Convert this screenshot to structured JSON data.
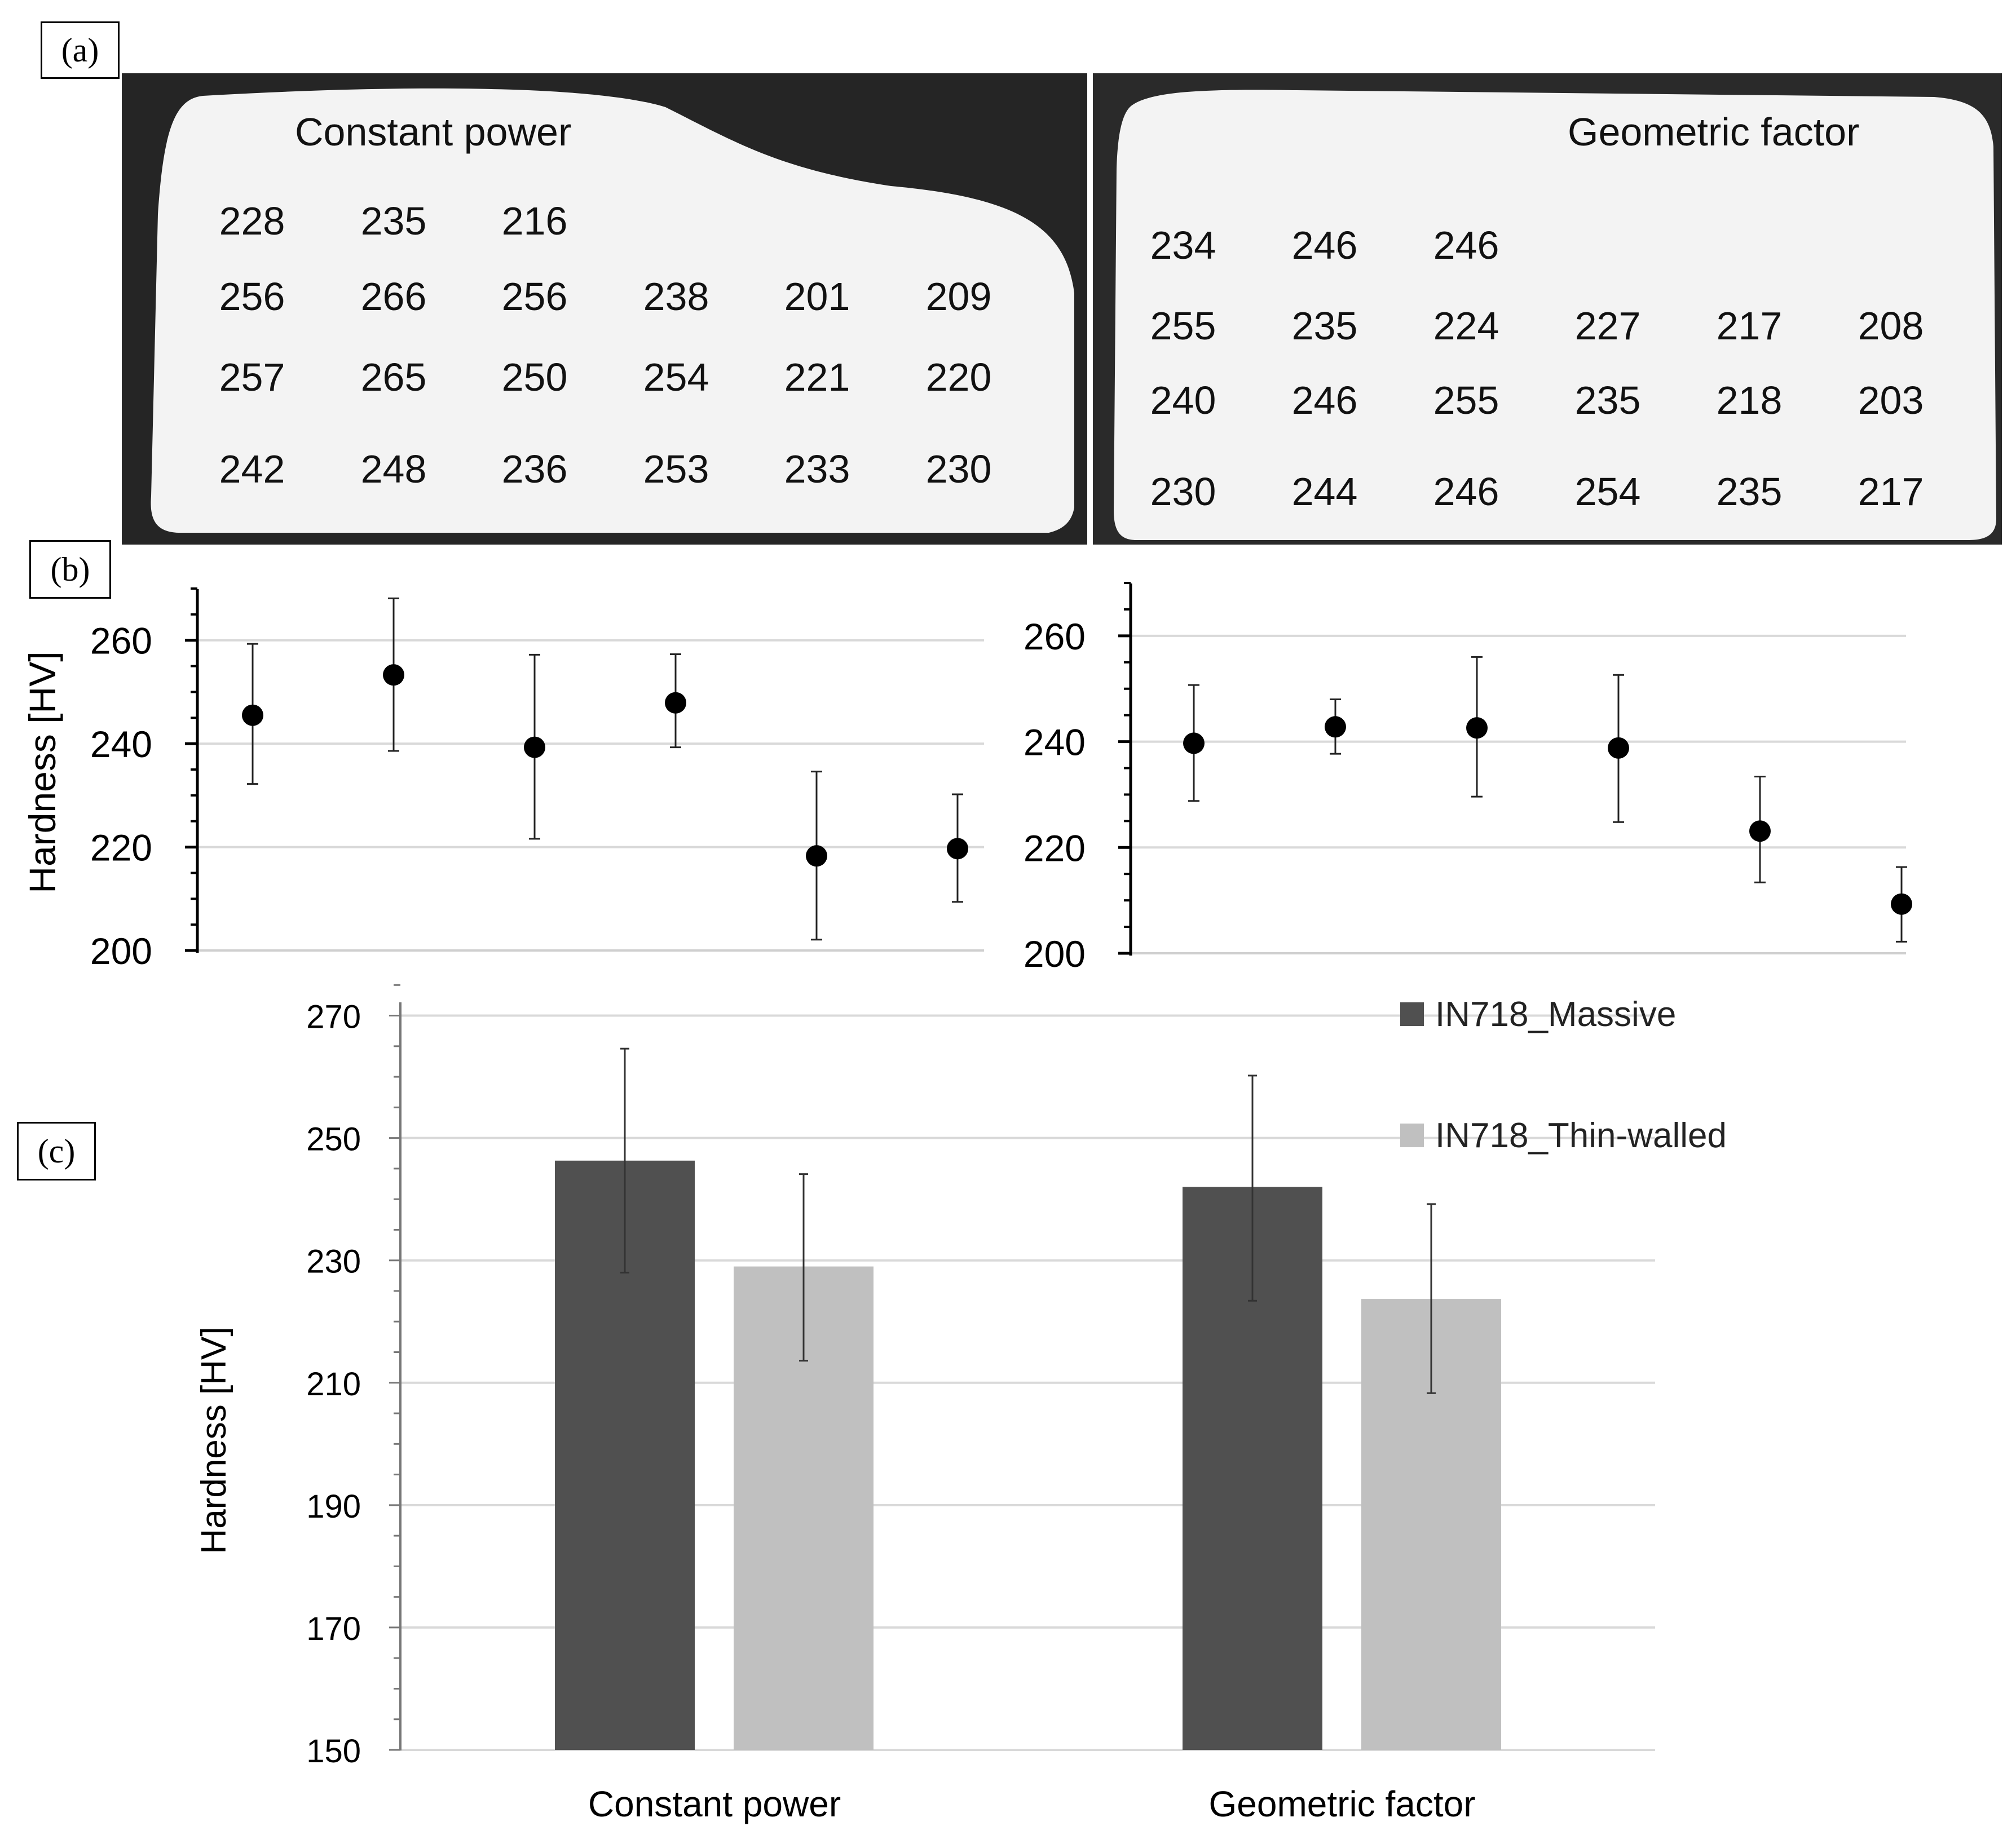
{
  "panel_labels": {
    "a": "(a)",
    "b": "(b)",
    "c": "(c)"
  },
  "panel_a": {
    "left": {
      "label": "Constant power",
      "grid": [
        [
          "228",
          "235",
          "216"
        ],
        [
          "256",
          "266",
          "256",
          "238",
          "201",
          "209"
        ],
        [
          "257",
          "265",
          "250",
          "254",
          "221",
          "220"
        ],
        [
          "242",
          "248",
          "236",
          "253",
          "233",
          "230"
        ]
      ]
    },
    "right": {
      "label": "Geometric factor",
      "grid": [
        [
          "234",
          "246",
          "246"
        ],
        [
          "255",
          "235",
          "224",
          "227",
          "217",
          "208"
        ],
        [
          "240",
          "246",
          "255",
          "235",
          "218",
          "203"
        ],
        [
          "230",
          "244",
          "246",
          "254",
          "235",
          "217"
        ]
      ]
    },
    "colors": {
      "background": "#252525",
      "specimen": "#f3f3f3"
    }
  },
  "chart_data": [
    {
      "type": "scatter",
      "panel": "b-left",
      "title": "",
      "ylabel": "Hardness [HV]",
      "ylim": [
        200,
        270
      ],
      "yticks": [
        200,
        220,
        240,
        260
      ],
      "x": [
        1,
        2,
        3,
        4,
        5,
        6
      ],
      "values": [
        245.5,
        253.3,
        239.3,
        247.9,
        218.3,
        219.7
      ],
      "error_low": [
        232.2,
        238.6,
        221.6,
        239.3,
        202.1,
        209.4
      ],
      "error_high": [
        259.3,
        268.1,
        257.2,
        257.3,
        234.6,
        230.2
      ],
      "grid": true
    },
    {
      "type": "scatter",
      "panel": "b-right",
      "title": "",
      "ylim": [
        200,
        270
      ],
      "yticks": [
        200,
        220,
        240,
        260
      ],
      "x": [
        1,
        2,
        3,
        4,
        5,
        6
      ],
      "values": [
        239.7,
        242.8,
        242.6,
        238.8,
        223.1,
        209.3
      ],
      "error_low": [
        228.8,
        237.7,
        229.6,
        224.8,
        213.4,
        202.2
      ],
      "error_high": [
        250.7,
        248.0,
        256.0,
        252.6,
        233.4,
        216.3
      ],
      "grid": true
    },
    {
      "type": "bar",
      "panel": "c",
      "ylabel": "Hardness [HV]",
      "ylim": [
        150,
        280
      ],
      "yticks": [
        150,
        170,
        190,
        210,
        230,
        250,
        270
      ],
      "categories": [
        "Constant power",
        "Geometric factor"
      ],
      "series": [
        {
          "name": "IN718_Massive",
          "color": "#505050",
          "values": [
            246.3,
            242.0
          ],
          "error_low": [
            228.0,
            223.4
          ],
          "error_high": [
            264.6,
            260.2
          ]
        },
        {
          "name": "IN718_Thin-walled",
          "color": "#c0c0c0",
          "values": [
            229.0,
            223.7
          ],
          "error_low": [
            213.6,
            208.3
          ],
          "error_high": [
            244.1,
            239.2
          ]
        }
      ],
      "legend": "top-right",
      "grid": true
    }
  ]
}
